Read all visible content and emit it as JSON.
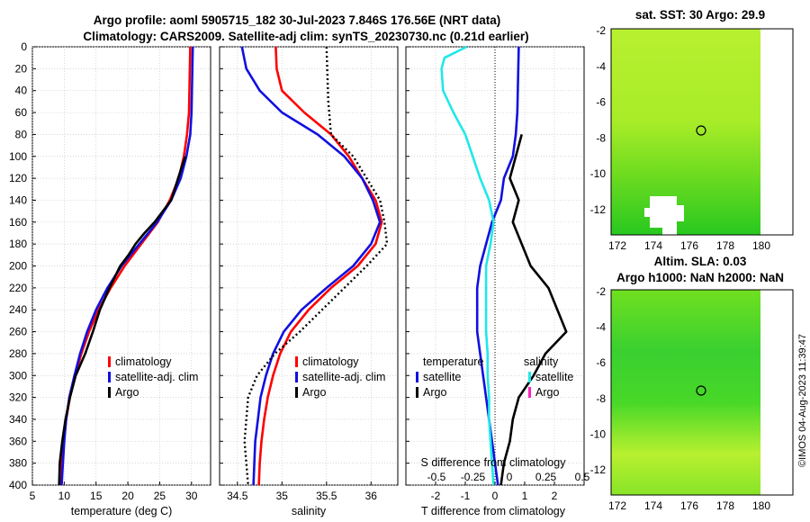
{
  "header": {
    "title_line1": "Argo profile: aoml 5905715_182 30-Jul-2023 7.846S 176.56E (NRT data)",
    "title_line2": "Climatology: CARS2009. Satellite-adj clim: synTS_20230730.nc (0.21d earlier)"
  },
  "colors": {
    "climatology": "#ff0000",
    "satellite": "#1010e0",
    "argo": "#000000",
    "salinity_satellite": "#20e8e8",
    "salinity_argo": "#ff20c0"
  },
  "depth_axis": {
    "ticks": [
      0,
      20,
      40,
      60,
      80,
      100,
      120,
      140,
      160,
      180,
      200,
      220,
      240,
      260,
      280,
      300,
      320,
      340,
      360,
      380,
      400
    ],
    "ylim": [
      0,
      400
    ]
  },
  "legend": {
    "climatology": "climatology",
    "satellite_adj": "satellite-adj. clim",
    "argo": "Argo",
    "temperature_head": "temperature",
    "salinity_head": "salinity",
    "satellite": "satellite",
    "argo_short": "Argo"
  },
  "chart_data": [
    {
      "type": "line",
      "name": "temperature",
      "xlabel": "temperature (deg C)",
      "xlim": [
        5,
        33
      ],
      "xticks": [
        5,
        10,
        15,
        20,
        25,
        30
      ],
      "series": [
        {
          "name": "climatology",
          "depth": [
            0,
            60,
            80,
            100,
            120,
            140,
            160,
            180,
            200,
            220,
            240,
            260,
            280,
            300,
            320,
            340,
            360,
            380,
            400
          ],
          "values": [
            29.8,
            29.6,
            29.3,
            28.8,
            28.0,
            26.6,
            24.7,
            22.1,
            19.5,
            17.3,
            15.4,
            13.9,
            12.7,
            11.7,
            10.9,
            10.3,
            9.9,
            9.6,
            9.4
          ]
        },
        {
          "name": "satellite-adj. clim",
          "depth": [
            0,
            60,
            80,
            100,
            120,
            140,
            160,
            180,
            200,
            220,
            240,
            260,
            280,
            300,
            320,
            340,
            360,
            380,
            400
          ],
          "values": [
            30.2,
            30.0,
            29.8,
            29.2,
            28.3,
            26.8,
            24.6,
            21.8,
            19.0,
            16.8,
            15.0,
            13.6,
            12.5,
            11.6,
            10.8,
            10.3,
            10.0,
            9.8,
            9.6
          ]
        },
        {
          "name": "Argo",
          "depth": [
            100,
            120,
            140,
            160,
            170,
            180,
            190,
            200,
            220,
            240,
            260,
            280,
            300,
            320,
            340,
            360,
            380,
            400
          ],
          "values": [
            29.0,
            27.9,
            26.8,
            24.2,
            22.6,
            21.2,
            20.1,
            18.8,
            17.1,
            15.6,
            14.5,
            13.3,
            11.8,
            10.9,
            10.2,
            9.7,
            9.3,
            9.2
          ]
        }
      ]
    },
    {
      "type": "line",
      "name": "salinity",
      "xlabel": "salinity",
      "xlim": [
        34.3,
        36.3
      ],
      "xticks": [
        34.5,
        35,
        35.5,
        36
      ],
      "xticklabels": [
        "34.5",
        "35",
        "35.5",
        "36"
      ],
      "series": [
        {
          "name": "climatology",
          "depth": [
            0,
            20,
            40,
            60,
            80,
            100,
            120,
            140,
            160,
            180,
            200,
            220,
            240,
            260,
            280,
            300,
            320,
            340,
            360,
            380,
            400
          ],
          "values": [
            34.93,
            34.94,
            35.0,
            35.25,
            35.55,
            35.75,
            35.9,
            36.05,
            36.12,
            36.05,
            35.85,
            35.55,
            35.3,
            35.1,
            34.98,
            34.9,
            34.84,
            34.8,
            34.77,
            34.75,
            34.74
          ]
        },
        {
          "name": "satellite-adj. clim",
          "depth": [
            0,
            20,
            40,
            60,
            80,
            100,
            120,
            140,
            160,
            180,
            200,
            220,
            240,
            260,
            280,
            300,
            320,
            340,
            360,
            380,
            400
          ],
          "values": [
            34.55,
            34.6,
            34.75,
            35.0,
            35.4,
            35.7,
            35.9,
            36.02,
            36.1,
            36.0,
            35.8,
            35.5,
            35.22,
            35.02,
            34.9,
            34.82,
            34.76,
            34.73,
            34.7,
            34.69,
            34.68
          ]
        },
        {
          "name": "Argo",
          "depth": [
            0,
            50,
            80,
            100,
            120,
            140,
            160,
            180,
            200,
            220,
            240,
            260,
            280,
            300,
            320,
            340,
            360,
            380,
            400
          ],
          "values": [
            35.5,
            35.52,
            35.55,
            35.8,
            35.95,
            36.1,
            36.15,
            36.18,
            35.95,
            35.7,
            35.45,
            35.2,
            34.92,
            34.72,
            34.62,
            34.6,
            34.58,
            34.6,
            34.62
          ]
        }
      ]
    },
    {
      "type": "line",
      "name": "difference",
      "xlabel": "T difference from climatology",
      "xlabel_top": "S difference from climatology",
      "xlim": [
        -3,
        3
      ],
      "xticks": [
        -2,
        -1,
        0,
        1,
        2
      ],
      "s_xticklabels": [
        "-0.5",
        "-0.25",
        "0",
        "0.25",
        "0.5"
      ],
      "series": [
        {
          "name": "temperature satellite",
          "depth": [
            0,
            60,
            80,
            100,
            120,
            140,
            160,
            180,
            200,
            220,
            240,
            260,
            280,
            300,
            320,
            340,
            360,
            380,
            400
          ],
          "values": [
            0.8,
            0.75,
            0.7,
            0.6,
            0.3,
            0.2,
            -0.1,
            -0.3,
            -0.5,
            -0.6,
            -0.6,
            -0.6,
            -0.5,
            -0.4,
            -0.3,
            -0.2,
            -0.1,
            0.0,
            0.1
          ]
        },
        {
          "name": "temperature Argo",
          "depth": [
            80,
            100,
            120,
            140,
            160,
            180,
            200,
            220,
            240,
            260,
            280,
            300,
            320,
            340,
            360,
            380,
            400
          ],
          "values": [
            0.9,
            0.7,
            0.5,
            0.8,
            0.6,
            0.9,
            1.2,
            1.8,
            2.1,
            2.4,
            1.7,
            1.3,
            0.8,
            0.6,
            0.5,
            0.3,
            0.2
          ]
        },
        {
          "name": "salinity satellite",
          "depth": [
            0,
            10,
            20,
            40,
            60,
            80,
            100,
            120,
            140,
            160,
            180,
            200,
            220,
            240,
            260,
            280,
            300,
            320,
            340,
            360,
            380,
            400
          ],
          "values": [
            -0.95,
            -1.7,
            -1.8,
            -1.75,
            -1.4,
            -1.0,
            -0.75,
            -0.5,
            -0.2,
            -0.05,
            -0.15,
            -0.3,
            -0.3,
            -0.3,
            -0.3,
            -0.25,
            -0.25,
            -0.2,
            -0.2,
            -0.15,
            -0.1,
            -0.05
          ]
        }
      ]
    }
  ],
  "maps": {
    "sst": {
      "title": "sat. SST: 30 Argo: 29.9",
      "xticks": [
        "172",
        "174",
        "176",
        "178",
        "180"
      ],
      "yticks": [
        "-2",
        "-4",
        "-6",
        "-8",
        "-10",
        "-12"
      ]
    },
    "sla": {
      "title_line1": "Altim. SLA: 0.03",
      "title_line2": "Argo h1000: NaN h2000: NaN",
      "xticks": [
        "172",
        "174",
        "176",
        "178",
        "180"
      ],
      "yticks": [
        "-2",
        "-4",
        "-6",
        "-8",
        "-10",
        "-12"
      ]
    }
  },
  "stamp": "©IMOS 04-Aug-2023 11:39:47"
}
